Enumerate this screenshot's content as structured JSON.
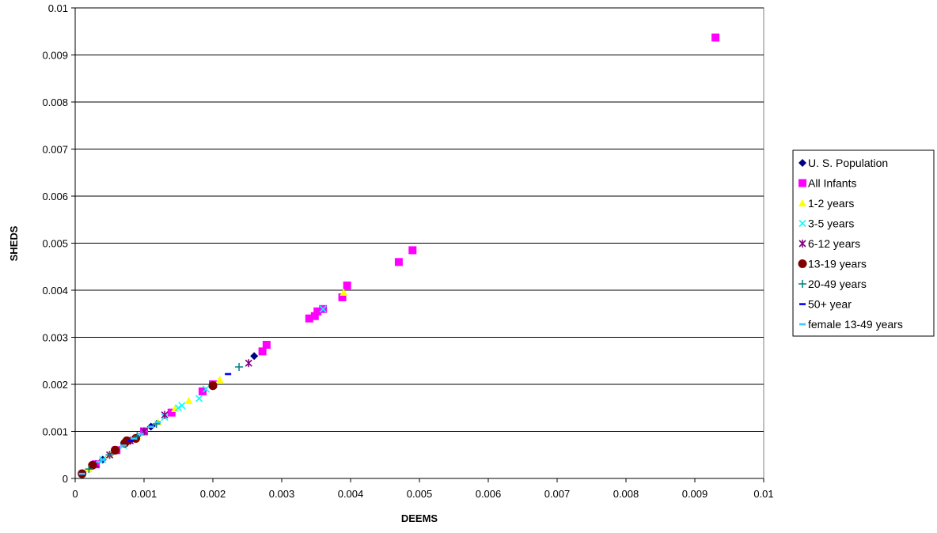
{
  "chart_data": {
    "type": "scatter",
    "title": "",
    "xlabel": "DEEMS",
    "ylabel": "SHEDS",
    "xlim": [
      0,
      0.01
    ],
    "ylim": [
      0,
      0.01
    ],
    "x_ticks": [
      "0",
      "0.001",
      "0.002",
      "0.003",
      "0.004",
      "0.005",
      "0.006",
      "0.007",
      "0.008",
      "0.009",
      "0.01"
    ],
    "y_ticks": [
      "0",
      "0.001",
      "0.002",
      "0.003",
      "0.004",
      "0.005",
      "0.006",
      "0.007",
      "0.008",
      "0.009",
      "0.01"
    ],
    "grid": "horizontal",
    "legend_position": "right",
    "series": [
      {
        "name": "U. S. Population",
        "marker": "diamond",
        "color": "#000080",
        "points": [
          [
            0.0001,
            0.0001
          ],
          [
            0.0004,
            0.0004
          ],
          [
            0.0008,
            0.0008
          ],
          [
            0.0011,
            0.0011
          ],
          [
            0.0026,
            0.0026
          ]
        ]
      },
      {
        "name": "All Infants",
        "marker": "square",
        "color": "#FF00FF",
        "points": [
          [
            0.0093,
            0.00937
          ],
          [
            0.0049,
            0.00485
          ],
          [
            0.0047,
            0.0046
          ],
          [
            0.00395,
            0.0041
          ],
          [
            0.00388,
            0.00385
          ],
          [
            0.0036,
            0.0036
          ],
          [
            0.00352,
            0.00355
          ],
          [
            0.00348,
            0.00345
          ],
          [
            0.0034,
            0.0034
          ],
          [
            0.00278,
            0.00284
          ],
          [
            0.00272,
            0.0027
          ],
          [
            0.002,
            0.002
          ],
          [
            0.00185,
            0.00185
          ],
          [
            0.0014,
            0.0014
          ],
          [
            0.001,
            0.001
          ],
          [
            0.0006,
            0.0006
          ],
          [
            0.0003,
            0.0003
          ]
        ]
      },
      {
        "name": "1-2 years",
        "marker": "triangle",
        "color": "#FFFF00",
        "points": [
          [
            0.0039,
            0.00395
          ],
          [
            0.0021,
            0.0021
          ],
          [
            0.00165,
            0.00165
          ],
          [
            0.00145,
            0.00148
          ],
          [
            0.0012,
            0.0012
          ],
          [
            0.0009,
            0.0009
          ],
          [
            0.0005,
            0.0005
          ],
          [
            0.0002,
            0.0002
          ]
        ]
      },
      {
        "name": "3-5 years",
        "marker": "x",
        "color": "#00FFFF",
        "points": [
          [
            0.0036,
            0.0036
          ],
          [
            0.0019,
            0.0019
          ],
          [
            0.0018,
            0.0017
          ],
          [
            0.00155,
            0.00155
          ],
          [
            0.0015,
            0.0015
          ],
          [
            0.0013,
            0.0013
          ],
          [
            0.001,
            0.001
          ],
          [
            0.0007,
            0.0007
          ],
          [
            0.0004,
            0.0004
          ],
          [
            0.0001,
            0.0001
          ]
        ]
      },
      {
        "name": "6-12  years",
        "marker": "star",
        "color": "#800080",
        "points": [
          [
            0.00252,
            0.00245
          ],
          [
            0.0013,
            0.00135
          ],
          [
            0.001,
            0.001
          ],
          [
            0.0008,
            0.0008
          ],
          [
            0.0005,
            0.0005
          ],
          [
            0.0003,
            0.0003
          ]
        ]
      },
      {
        "name": "13-19 years",
        "marker": "circle",
        "color": "#800000",
        "points": [
          [
            0.002,
            0.00197
          ],
          [
            0.00088,
            0.00085
          ],
          [
            0.00075,
            0.0008
          ],
          [
            0.00072,
            0.00075
          ],
          [
            0.00058,
            0.0006
          ],
          [
            0.00025,
            0.00028
          ],
          [
            0.0001,
            0.0001
          ]
        ]
      },
      {
        "name": " 20-49 years",
        "marker": "plus",
        "color": "#008080",
        "points": [
          [
            0.00238,
            0.00237
          ],
          [
            0.00118,
            0.00116
          ],
          [
            0.0009,
            0.0009
          ],
          [
            0.0005,
            0.0005
          ],
          [
            0.0002,
            0.0002
          ]
        ]
      },
      {
        "name": "50+ year",
        "marker": "dash",
        "color": "#0000FF",
        "points": [
          [
            0.00222,
            0.00222
          ],
          [
            0.00112,
            0.00112
          ],
          [
            0.0008,
            0.0008
          ],
          [
            0.0004,
            0.0004
          ],
          [
            0.0001,
            0.0001
          ]
        ]
      },
      {
        "name": "female 13-49 years",
        "marker": "dash",
        "color": "#33CCFF",
        "points": [
          [
            0.0012,
            0.0012
          ],
          [
            0.0011,
            0.0011
          ],
          [
            0.00095,
            0.00095
          ],
          [
            0.00085,
            0.00085
          ],
          [
            0.0007,
            0.0007
          ],
          [
            0.0004,
            0.0004
          ],
          [
            0.00035,
            0.00035
          ],
          [
            0.0001,
            0.0001
          ]
        ]
      }
    ]
  }
}
